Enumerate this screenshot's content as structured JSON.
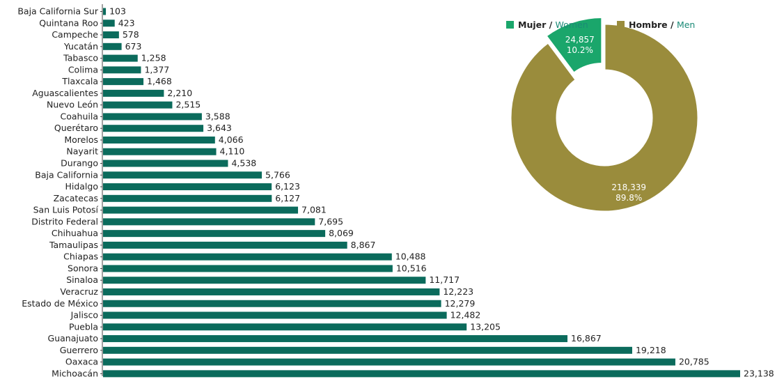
{
  "chart_data": [
    {
      "type": "bar",
      "orientation": "horizontal",
      "categories": [
        "Baja California Sur",
        "Quintana Roo",
        "Campeche",
        "Yucatán",
        "Tabasco",
        "Colima",
        "Tlaxcala",
        "Aguascalientes",
        "Nuevo León",
        "Coahuila",
        "Querétaro",
        "Morelos",
        "Nayarit",
        "Durango",
        "Baja California",
        "Hidalgo",
        "Zacatecas",
        "San Luis Potosí",
        "Distrito Federal",
        "Chihuahua",
        "Tamaulipas",
        "Chiapas",
        "Sonora",
        "Sinaloa",
        "Veracruz",
        "Estado de México",
        "Jalisco",
        "Puebla",
        "Guanajuato",
        "Guerrero",
        "Oaxaca",
        "Michoacán"
      ],
      "values": [
        103,
        423,
        578,
        673,
        1258,
        1377,
        1468,
        2210,
        2515,
        3588,
        3643,
        4066,
        4110,
        4538,
        5766,
        6123,
        6127,
        7081,
        7695,
        8069,
        8867,
        10488,
        10516,
        11717,
        12223,
        12279,
        12482,
        13205,
        16867,
        19218,
        20785,
        23138
      ],
      "value_labels": [
        "103",
        "423",
        "578",
        "673",
        "1,258",
        "1,377",
        "1,468",
        "2,210",
        "2,515",
        "3,588",
        "3,643",
        "4,066",
        "4,110",
        "4,538",
        "5,766",
        "6,123",
        "6,127",
        "7,081",
        "7,695",
        "8,069",
        "8,867",
        "10,488",
        "10,516",
        "11,717",
        "12,223",
        "12,279",
        "12,482",
        "13,205",
        "16,867",
        "19,218",
        "20,785",
        "23,138"
      ],
      "color": "#0b6b5c",
      "xlim": [
        0,
        23138
      ]
    },
    {
      "type": "pie",
      "donut": true,
      "slices": [
        {
          "legend_main": "Mujer / ",
          "legend_accent": "Women",
          "value": 24857,
          "value_label": "24,857",
          "percent_label": "10.2%",
          "color": "#1aa66b",
          "exploded": true
        },
        {
          "legend_main": "Hombre / ",
          "legend_accent": "Men",
          "value": 218339,
          "value_label": "218,339",
          "percent_label": "89.8%",
          "color": "#9a8c3c",
          "exploded": false
        }
      ],
      "legend_accent_color": "#1a8a76",
      "legend_position": "top"
    }
  ]
}
